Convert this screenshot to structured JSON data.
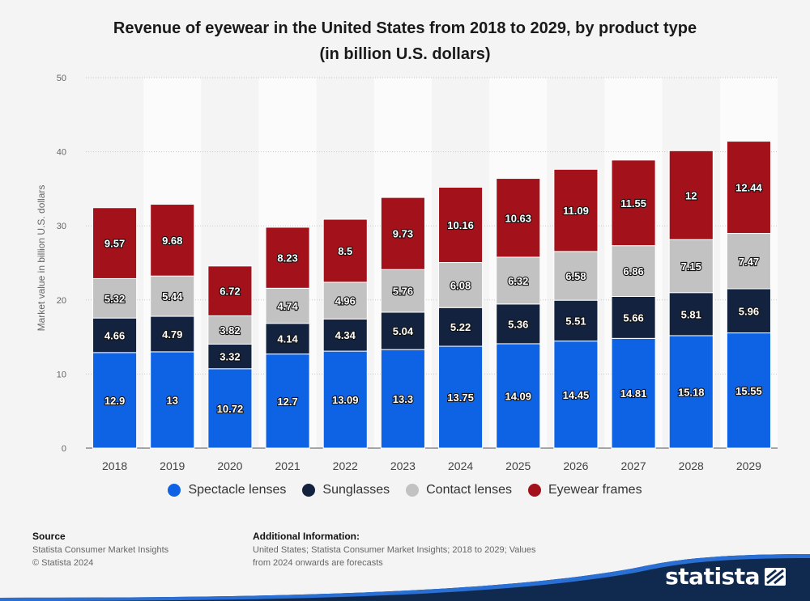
{
  "title_line1": "Revenue of eyewear in the United States from 2018 to 2029, by product type",
  "title_line2": "(in billion U.S. dollars)",
  "legend": [
    {
      "label": "Spectacle lenses",
      "color": "#0e63e4"
    },
    {
      "label": "Sunglasses",
      "color": "#13233f"
    },
    {
      "label": "Contact lenses",
      "color": "#c2c2c2"
    },
    {
      "label": "Eyewear frames",
      "color": "#a3111a"
    }
  ],
  "footer": {
    "source_heading": "Source",
    "source_line1": "Statista Consumer Market Insights",
    "source_line2": "© Statista 2024",
    "info_heading": "Additional Information:",
    "info_line1": "United States; Statista Consumer Market Insights; 2018 to 2029; Values",
    "info_line2": "from 2024 onwards are forecasts",
    "logo": "statista"
  },
  "chart_data": {
    "type": "bar",
    "stacked": true,
    "title": "Revenue of eyewear in the United States from 2018 to 2029, by product type (in billion U.S. dollars)",
    "ylabel": "Market value in billion U.S. dollars",
    "xlabel": "",
    "ylim": [
      0,
      50
    ],
    "yticks": [
      0,
      10,
      20,
      30,
      40,
      50
    ],
    "grid": true,
    "legend_position": "bottom",
    "categories": [
      "2018",
      "2019",
      "2020",
      "2021",
      "2022",
      "2023",
      "2024",
      "2025",
      "2026",
      "2027",
      "2028",
      "2029"
    ],
    "series": [
      {
        "name": "Spectacle lenses",
        "color": "#0e63e4",
        "values": [
          12.9,
          13,
          10.72,
          12.7,
          13.09,
          13.3,
          13.75,
          14.09,
          14.45,
          14.81,
          15.18,
          15.55
        ]
      },
      {
        "name": "Sunglasses",
        "color": "#13233f",
        "values": [
          4.66,
          4.79,
          3.32,
          4.14,
          4.34,
          5.04,
          5.22,
          5.36,
          5.51,
          5.66,
          5.81,
          5.96
        ]
      },
      {
        "name": "Contact lenses",
        "color": "#c2c2c2",
        "values": [
          5.32,
          5.44,
          3.82,
          4.74,
          4.96,
          5.76,
          6.08,
          6.32,
          6.58,
          6.86,
          7.15,
          7.47
        ]
      },
      {
        "name": "Eyewear frames",
        "color": "#a3111a",
        "values": [
          9.57,
          9.68,
          6.72,
          8.23,
          8.5,
          9.73,
          10.16,
          10.63,
          11.09,
          11.55,
          12,
          12.44
        ]
      }
    ]
  }
}
